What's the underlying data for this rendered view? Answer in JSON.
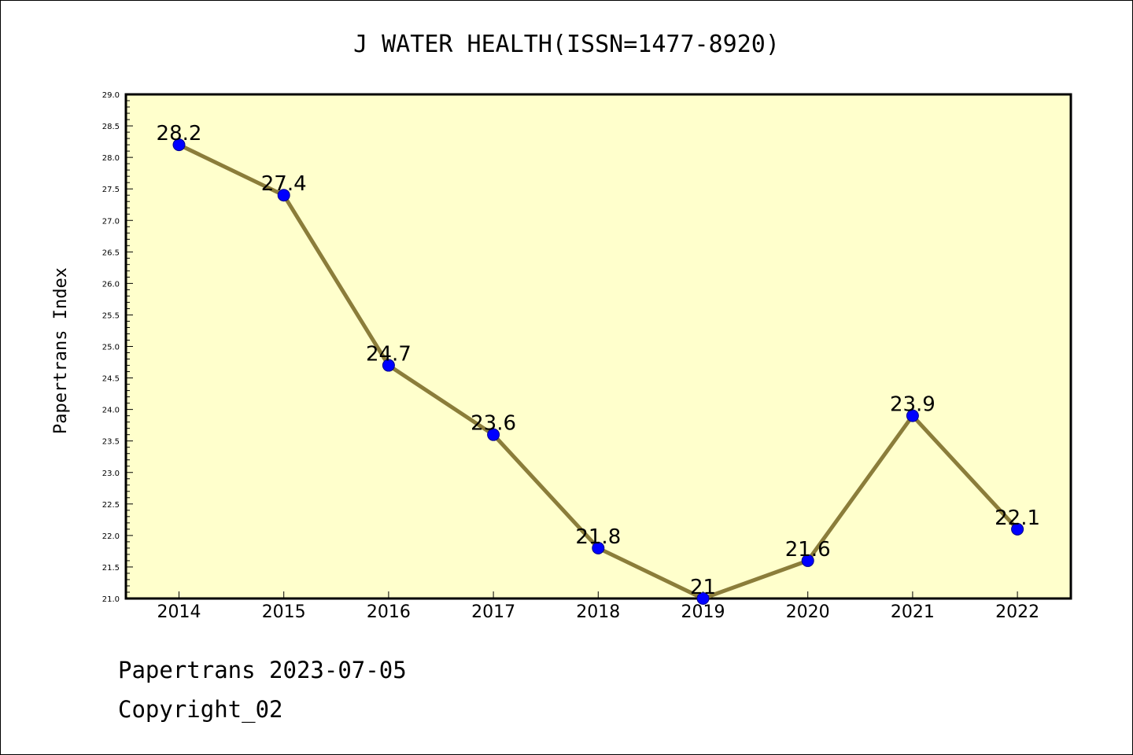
{
  "chart_data": {
    "type": "line",
    "title": "J WATER HEALTH(ISSN=1477-8920)",
    "ylabel": "Papertrans Index",
    "xlabel": "",
    "categories": [
      "2014",
      "2015",
      "2016",
      "2017",
      "2018",
      "2019",
      "2020",
      "2021",
      "2022"
    ],
    "values": [
      28.2,
      27.4,
      24.7,
      23.6,
      21.8,
      21.0,
      21.6,
      23.9,
      22.1
    ],
    "data_labels": [
      "28.2",
      "27.4",
      "24.7",
      "23.6",
      "21.8",
      "21",
      "21.6",
      "23.9",
      "22.1"
    ],
    "ylim": [
      21.0,
      29.0
    ],
    "ytick_labels": [
      "21.0",
      "21.5",
      "22.0",
      "22.5",
      "23.0",
      "23.5",
      "24.0",
      "24.5",
      "25.0",
      "25.5",
      "26.0",
      "26.5",
      "27.0",
      "27.5",
      "28.0",
      "28.5",
      "29.0"
    ],
    "grid": false,
    "legend": "none",
    "colors": {
      "plot_background": "#ffffcc",
      "line": "#8b7d3a",
      "marker": "#0000ff"
    }
  },
  "footer": {
    "line1": "Papertrans 2023-07-05",
    "line2": "Copyright_02"
  }
}
